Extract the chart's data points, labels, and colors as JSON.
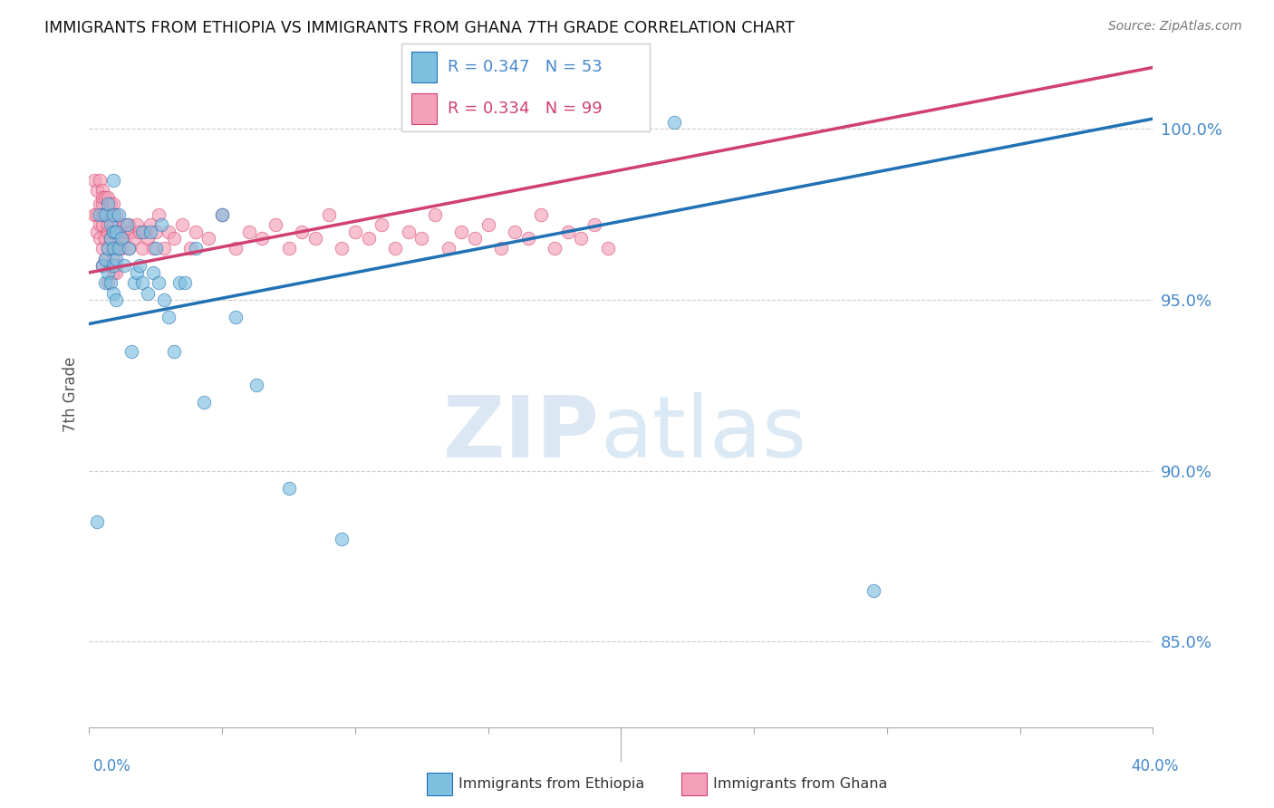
{
  "title": "IMMIGRANTS FROM ETHIOPIA VS IMMIGRANTS FROM GHANA 7TH GRADE CORRELATION CHART",
  "source": "Source: ZipAtlas.com",
  "ylabel": "7th Grade",
  "yticks": [
    85.0,
    90.0,
    95.0,
    100.0
  ],
  "ytick_labels": [
    "85.0%",
    "90.0%",
    "95.0%",
    "100.0%"
  ],
  "xticks": [
    0.0,
    0.05,
    0.1,
    0.15,
    0.2,
    0.25,
    0.3,
    0.35,
    0.4
  ],
  "xlim": [
    0.0,
    0.4
  ],
  "ylim": [
    82.5,
    102.0
  ],
  "legend_ethiopia_R": "0.347",
  "legend_ethiopia_N": "53",
  "legend_ghana_R": "0.334",
  "legend_ghana_N": "99",
  "blue_color": "#7fbfdf",
  "pink_color": "#f4a0b8",
  "blue_line_color": "#2171b5",
  "pink_line_color": "#d04070",
  "tick_color": "#4488cc",
  "blue_line_x0": 0.0,
  "blue_line_y0": 94.3,
  "blue_line_x1": 0.4,
  "blue_line_y1": 100.3,
  "pink_line_x0": 0.0,
  "pink_line_y0": 95.8,
  "pink_line_x1": 0.4,
  "pink_line_y1": 101.8,
  "ethiopia_x": [
    0.003,
    0.004,
    0.005,
    0.006,
    0.006,
    0.006,
    0.007,
    0.007,
    0.007,
    0.008,
    0.008,
    0.008,
    0.009,
    0.009,
    0.009,
    0.009,
    0.009,
    0.009,
    0.01,
    0.01,
    0.01,
    0.011,
    0.011,
    0.012,
    0.013,
    0.014,
    0.015,
    0.016,
    0.017,
    0.018,
    0.019,
    0.02,
    0.02,
    0.022,
    0.023,
    0.024,
    0.025,
    0.026,
    0.027,
    0.028,
    0.03,
    0.032,
    0.034,
    0.036,
    0.04,
    0.043,
    0.05,
    0.055,
    0.063,
    0.075,
    0.095,
    0.22,
    0.295
  ],
  "ethiopia_y": [
    88.5,
    97.5,
    96.0,
    95.5,
    96.2,
    97.5,
    95.8,
    96.5,
    97.8,
    95.5,
    96.8,
    97.2,
    95.2,
    96.0,
    96.5,
    97.0,
    97.5,
    98.5,
    95.0,
    96.2,
    97.0,
    96.5,
    97.5,
    96.8,
    96.0,
    97.2,
    96.5,
    93.5,
    95.5,
    95.8,
    96.0,
    95.5,
    97.0,
    95.2,
    97.0,
    95.8,
    96.5,
    95.5,
    97.2,
    95.0,
    94.5,
    93.5,
    95.5,
    95.5,
    96.5,
    92.0,
    97.5,
    94.5,
    92.5,
    89.5,
    88.0,
    100.2,
    86.5
  ],
  "ghana_x": [
    0.002,
    0.002,
    0.003,
    0.003,
    0.003,
    0.004,
    0.004,
    0.004,
    0.004,
    0.005,
    0.005,
    0.005,
    0.005,
    0.005,
    0.005,
    0.005,
    0.006,
    0.006,
    0.006,
    0.006,
    0.007,
    0.007,
    0.007,
    0.007,
    0.007,
    0.007,
    0.008,
    0.008,
    0.008,
    0.008,
    0.009,
    0.009,
    0.009,
    0.009,
    0.009,
    0.009,
    0.01,
    0.01,
    0.01,
    0.01,
    0.01,
    0.011,
    0.011,
    0.011,
    0.012,
    0.012,
    0.013,
    0.013,
    0.014,
    0.015,
    0.015,
    0.016,
    0.017,
    0.018,
    0.019,
    0.02,
    0.021,
    0.022,
    0.023,
    0.024,
    0.025,
    0.026,
    0.028,
    0.03,
    0.032,
    0.035,
    0.038,
    0.04,
    0.045,
    0.05,
    0.055,
    0.06,
    0.065,
    0.07,
    0.075,
    0.08,
    0.085,
    0.09,
    0.095,
    0.1,
    0.105,
    0.11,
    0.115,
    0.12,
    0.125,
    0.13,
    0.135,
    0.14,
    0.145,
    0.15,
    0.155,
    0.16,
    0.165,
    0.17,
    0.175,
    0.18,
    0.185,
    0.19,
    0.195
  ],
  "ghana_y": [
    97.5,
    98.5,
    97.0,
    97.5,
    98.2,
    97.2,
    97.8,
    98.5,
    96.8,
    96.5,
    97.2,
    97.8,
    98.2,
    96.0,
    97.5,
    98.0,
    96.8,
    97.5,
    98.0,
    96.2,
    97.0,
    97.5,
    98.0,
    96.5,
    97.2,
    95.5,
    96.8,
    97.5,
    97.8,
    96.0,
    97.2,
    97.8,
    96.5,
    97.0,
    96.2,
    95.8,
    97.0,
    97.5,
    96.5,
    96.0,
    95.8,
    97.2,
    96.8,
    96.5,
    97.0,
    96.5,
    97.2,
    96.8,
    97.0,
    96.5,
    97.2,
    97.0,
    96.8,
    97.2,
    97.0,
    96.5,
    97.0,
    96.8,
    97.2,
    96.5,
    97.0,
    97.5,
    96.5,
    97.0,
    96.8,
    97.2,
    96.5,
    97.0,
    96.8,
    97.5,
    96.5,
    97.0,
    96.8,
    97.2,
    96.5,
    97.0,
    96.8,
    97.5,
    96.5,
    97.0,
    96.8,
    97.2,
    96.5,
    97.0,
    96.8,
    97.5,
    96.5,
    97.0,
    96.8,
    97.2,
    96.5,
    97.0,
    96.8,
    97.5,
    96.5,
    97.0,
    96.8,
    97.2,
    96.5
  ]
}
